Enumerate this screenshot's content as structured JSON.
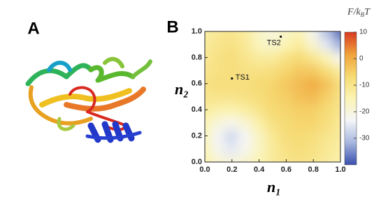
{
  "panel_labels": [
    "A",
    "B"
  ],
  "chart_data": {
    "type": "contour",
    "x_label": "n₁",
    "y_label": "n₂",
    "colorbar_label": [
      "F/k",
      "B",
      "T"
    ],
    "xlim": [
      0,
      1
    ],
    "ylim": [
      0,
      1
    ],
    "xticks": [
      {
        "value": 0,
        "label": "0.0"
      },
      0.2,
      0.4,
      0.6,
      0.8,
      {
        "value": 1,
        "label": "1.0"
      }
    ],
    "yticks": [
      {
        "value": 0,
        "label": "0.0"
      },
      0.2,
      0.4,
      0.6,
      0.8,
      {
        "value": 1,
        "label": "1.0"
      }
    ],
    "x": [
      0,
      0.1,
      0.2,
      0.3,
      0.4,
      0.5,
      0.6,
      0.7,
      0.8,
      0.9,
      1
    ],
    "y": [
      0,
      0.1,
      0.2,
      0.3,
      0.4,
      0.5,
      0.6,
      0.7,
      0.8,
      0.9,
      1
    ],
    "z": [
      [
        -14,
        -18,
        -20,
        -18,
        -15,
        -12,
        -10,
        -9,
        -10,
        -12,
        -14
      ],
      [
        -15,
        -22,
        -25,
        -22,
        -17,
        -12,
        -9,
        -8,
        -9,
        -11,
        -13
      ],
      [
        -16,
        -23,
        -27,
        -23,
        -17,
        -11,
        -8,
        -7,
        -8,
        -10,
        -12
      ],
      [
        -15,
        -20,
        -22,
        -19,
        -14,
        -9,
        -7,
        -6,
        -6,
        -8,
        -11
      ],
      [
        -12,
        -14,
        -15,
        -13,
        -10,
        -7,
        -6,
        -5,
        -5,
        -7,
        -10
      ],
      [
        -10,
        -10,
        -10,
        -9,
        -8,
        -6,
        -5,
        -3,
        -2,
        -5,
        -9
      ],
      [
        -9,
        -8,
        -8,
        -8,
        -7,
        -6,
        -4,
        -2,
        0,
        -3,
        -8
      ],
      [
        -10,
        -9,
        -8,
        -9,
        -9,
        -8,
        -6,
        -4,
        -4,
        -7,
        -12
      ],
      [
        -11,
        -9,
        -8,
        -10,
        -12,
        -12,
        -9,
        -7,
        -10,
        -15,
        -22
      ],
      [
        -12,
        -10,
        -9,
        -11,
        -16,
        -18,
        -15,
        -12,
        -18,
        -25,
        -32
      ],
      [
        -13,
        -11,
        -10,
        -12,
        -17,
        -20,
        -17,
        -15,
        -22,
        -30,
        -38
      ]
    ],
    "clim": [
      -40,
      10
    ],
    "cticks": [
      10,
      0,
      -10,
      -20,
      -30
    ],
    "colormap": [
      "#3a4fae",
      "#a6b6df",
      "#f4f5f8",
      "#fbf4b4",
      "#f6da72",
      "#f0a23a",
      "#d83a22"
    ],
    "points": [
      {
        "label": "TS1",
        "x": 0.2,
        "y": 0.64
      },
      {
        "label": "TS2",
        "x": 0.56,
        "y": 0.96
      }
    ]
  }
}
